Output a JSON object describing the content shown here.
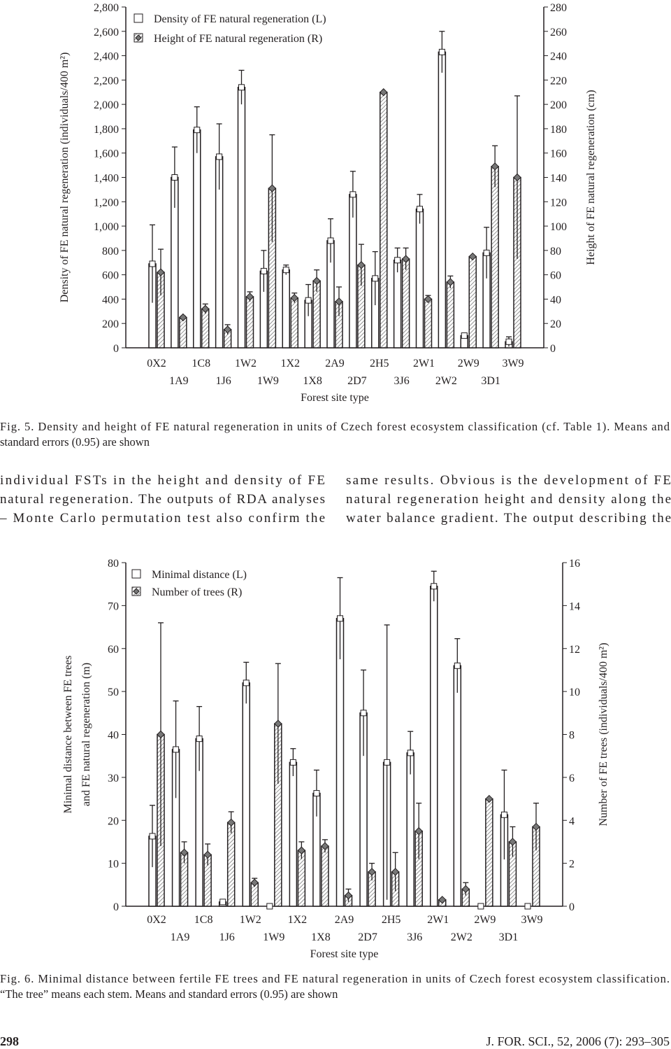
{
  "chart_data": [
    {
      "type": "bar",
      "xlabel": "Forest site type",
      "ylabel": "Density of FE natural regeneration (individuals/400 m²)",
      "y2label": "Height of FE natural regeneration (cm)",
      "categories": [
        "0X2",
        "1A9",
        "1C8",
        "1J6",
        "1W2",
        "1W9",
        "1X2",
        "1X8",
        "2A9",
        "2D7",
        "2H5",
        "3J6",
        "2W1",
        "2W2",
        "2W9",
        "3D1",
        "3W9"
      ],
      "series": [
        {
          "name": "Density of FE natural regeneration (L)",
          "color": "#ffffff",
          "marker": "square",
          "values": [
            690,
            1400,
            1790,
            1570,
            2140,
            630,
            640,
            390,
            880,
            1260,
            570,
            720,
            1140,
            2430,
            100,
            780,
            50
          ],
          "errors": [
            320,
            250,
            190,
            270,
            140,
            170,
            40,
            130,
            180,
            190,
            220,
            100,
            120,
            170,
            0,
            210,
            40
          ]
        },
        {
          "name": "Height of FE natural regeneration (R)",
          "color": "#777777",
          "marker": "diamond",
          "pattern": "hatched",
          "axis": "y2",
          "values": [
            62,
            25,
            32,
            15,
            42,
            131,
            41,
            55,
            38,
            68,
            210,
            73,
            40,
            54,
            75,
            149,
            140
          ],
          "errors": [
            19,
            1,
            4,
            4,
            4,
            44,
            4,
            9,
            12,
            17,
            0,
            9,
            3,
            5,
            0,
            17,
            67
          ]
        }
      ],
      "ylim": [
        0,
        2800
      ],
      "yticks": [
        0,
        200,
        400,
        600,
        800,
        {
          "value": 1000,
          "label": "1,000"
        },
        {
          "value": 1200,
          "label": "1,200"
        },
        {
          "value": 1400,
          "label": "1,400"
        },
        {
          "value": 1600,
          "label": "1,600"
        },
        {
          "value": 1800,
          "label": "1,800"
        },
        {
          "value": 2000,
          "label": "2,000"
        },
        {
          "value": 2200,
          "label": "2,200"
        },
        {
          "value": 2400,
          "label": "2,400"
        },
        {
          "value": 2600,
          "label": "2,600"
        },
        {
          "value": 2800,
          "label": "2,800"
        }
      ],
      "y2lim": [
        0,
        280
      ],
      "y2ticks": [
        0,
        20,
        40,
        60,
        80,
        100,
        120,
        140,
        160,
        180,
        200,
        220,
        240,
        260,
        280
      ],
      "caption": [
        "Fig. 5. Density and height of FE natural regeneration in units of Czech forest ecosystem classification (cf. Table 1). Means and",
        "standard errors (0.95) are shown"
      ]
    },
    {
      "type": "bar",
      "xlabel": "Forest site type",
      "ylabel": [
        "Minimal distance between FE trees",
        "and FE natural regeneration (m)"
      ],
      "y2label": "Number of FE trees (individuals/400 m²)",
      "categories": [
        "0X2",
        "1A9",
        "1C8",
        "1J6",
        "1W2",
        "1W9",
        "1X2",
        "1X8",
        "2A9",
        "2D7",
        "2H5",
        "3J6",
        "2W1",
        "2W2",
        "2W9",
        "3D1",
        "3W9"
      ],
      "series": [
        {
          "name": "Minimal distance (L)",
          "color": "#ffffff",
          "marker": "square",
          "values": [
            16.3,
            36.5,
            39,
            1,
            52,
            0,
            33.5,
            26.3,
            67,
            45,
            33.5,
            35.7,
            74.5,
            56,
            0,
            21.3,
            0
          ],
          "errors": [
            7.2,
            11.3,
            7.5,
            0,
            4.8,
            0,
            3.2,
            5.4,
            9.5,
            10,
            32,
            5,
            3.5,
            6.3,
            0,
            10.4,
            0
          ]
        },
        {
          "name": "Number of trees (R)",
          "color": "#777777",
          "marker": "diamond",
          "pattern": "hatched",
          "axis": "y2",
          "values": [
            8,
            2.5,
            2.4,
            3.9,
            1.1,
            8.5,
            2.6,
            2.8,
            0.5,
            1.6,
            1.6,
            3.5,
            0.3,
            0.8,
            5,
            3,
            3.7
          ],
          "errors": [
            5.2,
            0.5,
            0.5,
            0.5,
            0.2,
            2.8,
            0.4,
            0.3,
            0.3,
            0.4,
            0.9,
            1.3,
            0,
            0.3,
            0,
            0.7,
            1.1
          ]
        }
      ],
      "ylim": [
        0,
        80
      ],
      "yticks": [
        0,
        10,
        20,
        30,
        40,
        50,
        60,
        70,
        80
      ],
      "y2lim": [
        0,
        16
      ],
      "y2ticks": [
        0,
        2,
        4,
        6,
        8,
        10,
        12,
        14,
        16
      ],
      "caption": [
        "Fig. 6. Minimal distance between fertile FE trees and FE natural regeneration in units of Czech forest ecosystem classification.",
        "“The tree” means each stem. Means and standard errors (0.95) are shown"
      ]
    }
  ],
  "body": {
    "left": [
      "individual FSTs in the height and density of FE",
      "natural regeneration. The outputs of RDA analyses",
      "– Monte Carlo permutation test also confirm the"
    ],
    "right": [
      "same results. Obvious is the development of FE",
      "natural regeneration height and density along the",
      "water balance gradient. The output describing the"
    ]
  },
  "footer": {
    "page": "298",
    "citation": "J. FOR. SCI., 52, 2006 (7): 293–305"
  }
}
